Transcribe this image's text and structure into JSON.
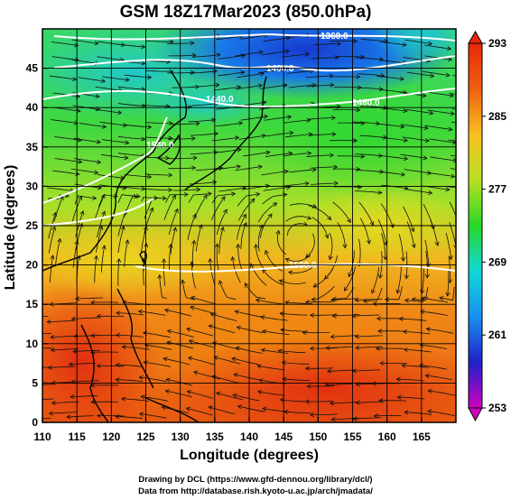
{
  "title": "GSM 18Z17Mar2023 (850.0hPa)",
  "map": {
    "lon_range": [
      110,
      170
    ],
    "lat_range": [
      0,
      50
    ],
    "xlabel": "Longitude (degrees)",
    "ylabel": "Latitude  (degrees)",
    "lon_ticks": [
      110,
      115,
      120,
      125,
      130,
      135,
      140,
      145,
      150,
      155,
      160,
      165
    ],
    "lat_ticks": [
      0,
      5,
      10,
      15,
      20,
      25,
      30,
      35,
      40,
      45
    ],
    "grid": true,
    "field": "temperature (K)",
    "contour_labels": [
      "1360.0",
      "1400.0",
      "1440.0",
      "1480.0",
      "1500.0",
      "1540.0"
    ]
  },
  "colorbar": {
    "ticks": [
      "293",
      "285",
      "277",
      "269",
      "261",
      "253"
    ],
    "range": [
      253,
      293
    ],
    "colors": [
      "#d000c0",
      "#2020c8",
      "#1890f0",
      "#10d8d8",
      "#28d828",
      "#b8e020",
      "#f8c020",
      "#f06010",
      "#e82808"
    ]
  },
  "credits": {
    "line1": "Drawing by DCL (https://www.gfd-dennou.org/library/dcl/)",
    "line2": "Data from http://database.rish.kyoto-u.ac.jp/arch/jmadata/"
  }
}
